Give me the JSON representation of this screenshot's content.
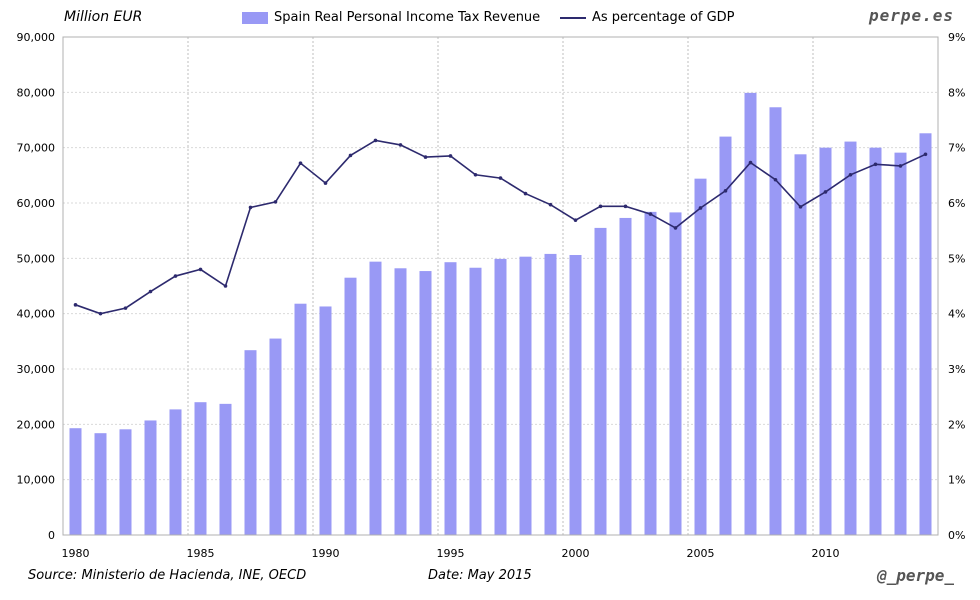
{
  "header": {
    "unit_label": "Million EUR",
    "brand": "perpe.es"
  },
  "footer": {
    "source": "Source: Ministerio de Hacienda, INE, OECD",
    "date": "Date: May 2015",
    "handle": "@_perpe_"
  },
  "colors": {
    "bar": "#9999f5",
    "line": "#2d2a6e",
    "grid": "#d9d9d9"
  },
  "chart_data": {
    "type": "bar",
    "title": "",
    "xlabel": "",
    "ylabel": "Million EUR",
    "x": [
      1980,
      1981,
      1982,
      1983,
      1984,
      1985,
      1986,
      1987,
      1988,
      1989,
      1990,
      1991,
      1992,
      1993,
      1994,
      1995,
      1996,
      1997,
      1998,
      1999,
      2000,
      2001,
      2002,
      2003,
      2004,
      2005,
      2006,
      2007,
      2008,
      2009,
      2010,
      2011,
      2012,
      2013,
      2014
    ],
    "x_tick_labels": [
      "1980",
      "1985",
      "1990",
      "1995",
      "2000",
      "2005",
      "2010"
    ],
    "ylim": [
      0,
      90000
    ],
    "y_tick_labels": [
      "0",
      "10,000",
      "20,000",
      "30,000",
      "40,000",
      "50,000",
      "60,000",
      "70,000",
      "80,000",
      "90,000"
    ],
    "y2lim": [
      0,
      9
    ],
    "y2_tick_labels": [
      "0%",
      "1%",
      "2%",
      "3%",
      "4%",
      "5%",
      "6%",
      "7%",
      "8%",
      "9%"
    ],
    "series": [
      {
        "name": "Spain Real Personal Income Tax Revenue",
        "kind": "bar",
        "axis": "left",
        "values": [
          19300,
          18400,
          19100,
          20700,
          22700,
          24000,
          23700,
          33400,
          35500,
          41800,
          41300,
          46500,
          49400,
          48200,
          47700,
          49300,
          48300,
          49900,
          50300,
          50800,
          50600,
          55500,
          57300,
          58400,
          58300,
          64400,
          72000,
          79900,
          77300,
          68800,
          70000,
          71100,
          70000,
          69100,
          72600
        ]
      },
      {
        "name": "As percentage of GDP",
        "kind": "line",
        "axis": "right",
        "values": [
          4.16,
          4.0,
          4.1,
          4.4,
          4.68,
          4.8,
          4.5,
          5.92,
          6.02,
          6.72,
          6.36,
          6.86,
          7.13,
          7.05,
          6.83,
          6.85,
          6.51,
          6.45,
          6.17,
          5.97,
          5.69,
          5.94,
          5.94,
          5.8,
          5.55,
          5.91,
          6.22,
          6.73,
          6.42,
          5.93,
          6.2,
          6.51,
          6.7,
          6.67,
          6.88
        ]
      }
    ],
    "legend_position": "top-center",
    "grid": true
  }
}
